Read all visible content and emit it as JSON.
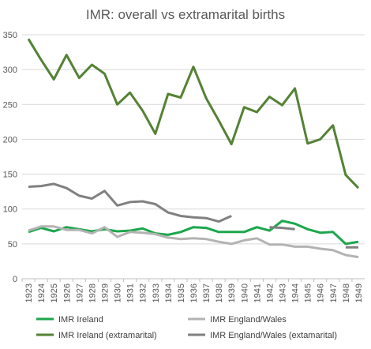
{
  "chart_data": {
    "type": "line",
    "title": "IMR: overall vs extramarital births",
    "xlabel": "",
    "ylabel": "",
    "ylim": [
      0,
      350
    ],
    "yticks": [
      0,
      50,
      100,
      150,
      200,
      250,
      300,
      350
    ],
    "grid": true,
    "legend_position": "bottom",
    "categories": [
      "1923",
      "1924",
      "1925",
      "1926",
      "1927",
      "1928",
      "1929",
      "1930",
      "1931",
      "1932",
      "1933",
      "1934",
      "1935",
      "1936",
      "1937",
      "1938",
      "1939",
      "1940",
      "1941",
      "1942",
      "1943",
      "1944",
      "1945",
      "1946",
      "1947",
      "1948",
      "1949"
    ],
    "series": [
      {
        "name": "IMR Ireland",
        "color": "#1ca64c",
        "values": [
          67,
          73,
          68,
          74,
          71,
          68,
          71,
          68,
          69,
          72,
          65,
          63,
          67,
          74,
          73,
          67,
          67,
          67,
          74,
          69,
          83,
          79,
          71,
          66,
          67,
          50,
          53
        ]
      },
      {
        "name": "IMR England/Wales",
        "color": "#b3b3b3",
        "values": [
          69,
          75,
          75,
          70,
          70,
          65,
          74,
          60,
          67,
          66,
          64,
          59,
          57,
          58,
          57,
          53,
          50,
          55,
          58,
          49,
          49,
          46,
          46,
          43,
          41,
          34,
          31
        ]
      },
      {
        "name": "IMR Ireland (extramarital)",
        "color": "#548235",
        "values": [
          344,
          314,
          286,
          321,
          288,
          307,
          294,
          250,
          267,
          241,
          208,
          265,
          260,
          304,
          259,
          227,
          193,
          246,
          239,
          261,
          249,
          273,
          194,
          200,
          220,
          149,
          130
        ]
      },
      {
        "name": "IMR England/Wales (extamarital)",
        "color": "#808080",
        "values": [
          132,
          133,
          136,
          130,
          119,
          115,
          126,
          105,
          110,
          111,
          107,
          95,
          90,
          88,
          87,
          82,
          90,
          null,
          null,
          74,
          73,
          71,
          null,
          null,
          null,
          45,
          45
        ]
      }
    ]
  }
}
